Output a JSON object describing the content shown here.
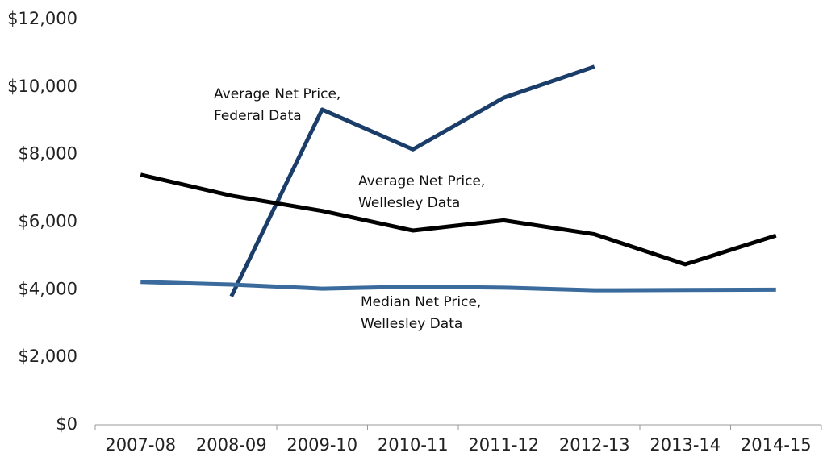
{
  "chart_data": {
    "type": "line",
    "categories": [
      "2007-08",
      "2008-09",
      "2009-10",
      "2010-11",
      "2011-12",
      "2012-13",
      "2013-14",
      "2014-15"
    ],
    "series": [
      {
        "name": "Average Net Price, Federal Data",
        "color": "#1b3d6a",
        "values": [
          null,
          3800,
          9330,
          8150,
          9680,
          10600,
          null,
          null
        ]
      },
      {
        "name": "Average Net Price, Wellesley Data",
        "color": "#000000",
        "values": [
          7400,
          6780,
          6330,
          5750,
          6050,
          5640,
          4750,
          5600
        ]
      },
      {
        "name": "Median Net Price, Wellesley Data",
        "color": "#3a6b9c",
        "values": [
          4230,
          4150,
          4030,
          4090,
          4060,
          3980,
          3990,
          4000
        ]
      }
    ],
    "ylim": [
      0,
      12000
    ],
    "yticks": [
      {
        "value": 0,
        "label": "$0"
      },
      {
        "value": 2000,
        "label": "$2,000"
      },
      {
        "value": 4000,
        "label": "$4,000"
      },
      {
        "value": 6000,
        "label": "$6,000"
      },
      {
        "value": 8000,
        "label": "$8,000"
      },
      {
        "value": 10000,
        "label": "$10,000"
      },
      {
        "value": 12000,
        "label": "$12,000"
      }
    ],
    "grid": false
  }
}
